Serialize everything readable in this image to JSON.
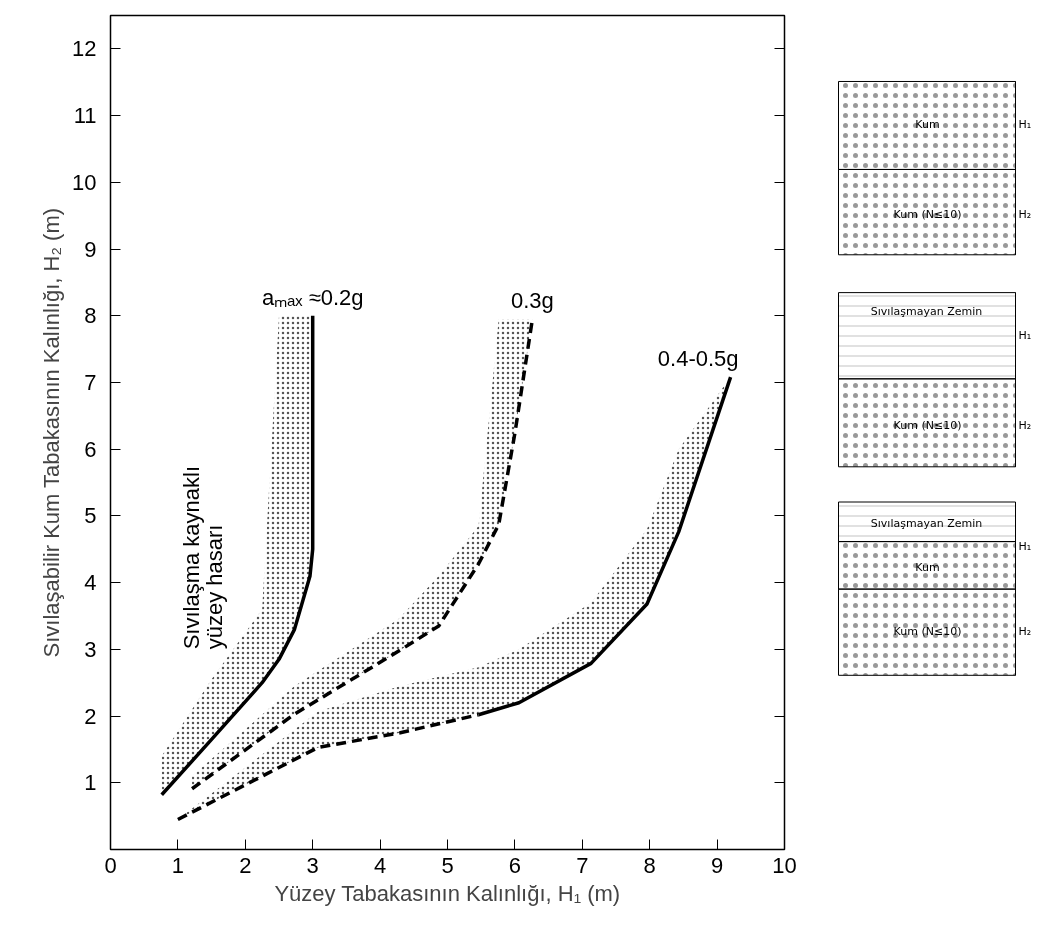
{
  "chart_data": {
    "type": "line",
    "xlabel": "Yüzey Tabakasının Kalınlığı, H₁ (m)",
    "ylabel": "Sıvılaşabilir Kum Tabakasının Kalınlığı, H₂ (m)",
    "xlim": [
      0,
      10
    ],
    "ylim": [
      0,
      12.5
    ],
    "xticks": [
      0,
      1,
      2,
      3,
      4,
      5,
      6,
      7,
      8,
      9,
      10
    ],
    "yticks": [
      1,
      2,
      3,
      4,
      5,
      6,
      7,
      8,
      9,
      10,
      11,
      12
    ],
    "grid": false,
    "marker": "none",
    "series": [
      {
        "name": "aₘₐₓ ≈0.2g",
        "color": "#000000",
        "line_style": "solid",
        "x": [
          0.76,
          1.5,
          2.25,
          2.5,
          2.73,
          2.96,
          3.0,
          3.0
        ],
        "values": [
          0.82,
          1.65,
          2.5,
          2.85,
          3.3,
          4.1,
          4.5,
          8.0
        ],
        "lower": [
          0.82,
          1.65,
          2.5,
          2.85,
          3.3,
          4.1,
          4.5,
          8.0
        ],
        "upper": [
          1.4,
          2.55,
          3.6,
          8.0,
          8.0,
          8.0,
          8.0,
          8.0
        ]
      },
      {
        "name": "0.3g",
        "color": "#000000",
        "line_style": "dashed",
        "x": [
          1.21,
          2.73,
          4.27,
          4.87,
          5.46,
          5.76,
          6.0,
          6.26
        ],
        "values": [
          0.91,
          2.03,
          2.97,
          3.35,
          4.28,
          4.87,
          6.24,
          7.95
        ],
        "lower": [
          0.91,
          2.03,
          2.97,
          3.35,
          4.28,
          4.87,
          6.24,
          7.95
        ],
        "upper": [
          1.1,
          2.45,
          3.45,
          4.1,
          4.85,
          7.95,
          7.95,
          7.95
        ]
      },
      {
        "color": "#000000",
        "line_style": "dashed",
        "x": [
          1.0,
          3.08,
          4.3,
          5.46
        ],
        "values": [
          0.45,
          1.53,
          1.75,
          2.02
        ],
        "lower": [
          0.45,
          1.53,
          1.75,
          2.02
        ],
        "upper": [
          0.45,
          2.07,
          2.45,
          2.73
        ]
      },
      {
        "name": "0.4-0.5g",
        "color": "#000000",
        "line_style": "solid",
        "x": [
          5.46,
          6.06,
          7.13,
          7.96,
          8.43,
          9.2
        ],
        "values": [
          2.02,
          2.2,
          2.79,
          3.68,
          4.76,
          7.08
        ],
        "lower": [
          2.02,
          2.2,
          2.79,
          3.68,
          4.76,
          7.08
        ],
        "upper": [
          2.73,
          3.0,
          3.7,
          4.8,
          6.0,
          7.08
        ]
      }
    ],
    "annotations": [
      "Sıvılaşma kaynaklı yüzey hasarı",
      "Kum",
      "H₁",
      "Kum (N≤10)",
      "H₂",
      "Sıvılaşmayan Zemin",
      "H₁",
      "Kum (N≤10)",
      "H₂",
      "Sıvılaşmayan Zemin",
      "Kum",
      "H₁",
      "Kum (N≤10)",
      "H₂"
    ]
  }
}
